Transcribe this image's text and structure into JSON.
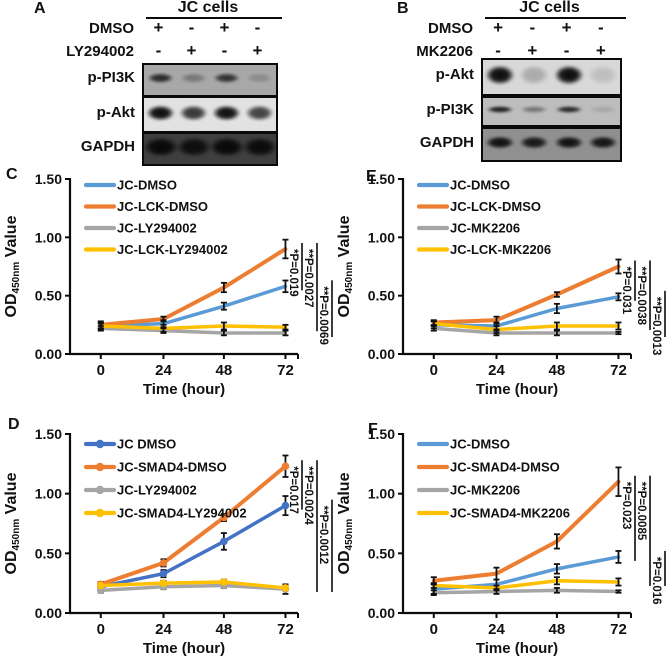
{
  "blot_panels": [
    {
      "id": "A",
      "letter": "A",
      "header": "JC cells",
      "conditions": [
        {
          "name": "DMSO",
          "signs": [
            "+",
            "-",
            "+",
            "-"
          ]
        },
        {
          "name": "LY294002",
          "signs": [
            "-",
            "+",
            "-",
            "+"
          ]
        }
      ],
      "blots": [
        {
          "label": "p-PI3K",
          "bg": "#a8a8a8",
          "band_h": 10,
          "band_w": 27,
          "bands": [
            0.8,
            0.3,
            0.75,
            0.18
          ]
        },
        {
          "label": "p-Akt",
          "bg": "#e2e2e2",
          "band_h": 16,
          "band_w": 29,
          "bands": [
            1.0,
            0.8,
            0.98,
            0.75
          ]
        },
        {
          "label": "GAPDH",
          "bg": "#3f3f3f",
          "band_h": 20,
          "band_w": 36,
          "bands": [
            1.0,
            0.92,
            1.0,
            0.96
          ]
        }
      ]
    },
    {
      "id": "B",
      "letter": "B",
      "header": "JC cells",
      "conditions": [
        {
          "name": "DMSO",
          "signs": [
            "+",
            "-",
            "+",
            "-"
          ]
        },
        {
          "name": "MK2206",
          "signs": [
            "-",
            "+",
            "-",
            "+"
          ]
        }
      ],
      "blots": [
        {
          "label": "p-Akt",
          "bg": "#d8d8d8",
          "band_h": 20,
          "band_w": 30,
          "bands": [
            1.0,
            0.22,
            1.0,
            0.12
          ]
        },
        {
          "label": "p-PI3K",
          "bg": "#bdbdbd",
          "band_h": 7,
          "band_w": 28,
          "bands": [
            0.9,
            0.4,
            0.85,
            0.12
          ]
        },
        {
          "label": "GAPDH",
          "bg": "#909090",
          "band_h": 13,
          "band_w": 30,
          "bands": [
            0.95,
            0.9,
            0.95,
            0.92
          ]
        }
      ]
    }
  ],
  "chart_data": [
    {
      "id": "C",
      "letter": "C",
      "type": "line",
      "x": [
        0,
        24,
        48,
        72
      ],
      "xlabel": "Time  (hour)",
      "ylabel": "OD450nm Value",
      "ylabel_parts": {
        "pre": "OD",
        "sub": "450nm",
        "post": "Value"
      },
      "ylim": [
        0,
        1.5
      ],
      "yticks": [
        "0.00",
        "0.50",
        "1.00",
        "1.50"
      ],
      "grid": false,
      "legend_position": "top-left",
      "markers": false,
      "series": [
        {
          "name": "JC-DMSO",
          "color": "#5B9BD5",
          "values": [
            0.24,
            0.26,
            0.41,
            0.58
          ],
          "err": [
            0.03,
            0.03,
            0.03,
            0.05
          ]
        },
        {
          "name": "JC-LCK-DMSO",
          "color": "#ED7D31",
          "values": [
            0.25,
            0.3,
            0.57,
            0.9
          ],
          "err": [
            0.03,
            0.02,
            0.04,
            0.08
          ]
        },
        {
          "name": "JC-LY294002",
          "color": "#A5A5A5",
          "values": [
            0.22,
            0.2,
            0.18,
            0.18
          ],
          "err": [
            0.02,
            0.02,
            0.02,
            0.02
          ]
        },
        {
          "name": "JC-LCK-LY294002",
          "color": "#FFC000",
          "values": [
            0.24,
            0.22,
            0.24,
            0.23
          ],
          "err": [
            0.02,
            0.03,
            0.03,
            0.02
          ]
        }
      ],
      "pvalues": [
        {
          "label": "*P=0.019",
          "from": 1,
          "to": 0
        },
        {
          "label": "**P=0.0027",
          "from": 1,
          "to": 3
        },
        {
          "label": "**P=0.0069",
          "from": 0,
          "to": 2
        }
      ]
    },
    {
      "id": "E",
      "letter": "E",
      "type": "line",
      "x": [
        0,
        24,
        48,
        72
      ],
      "xlabel": "Time  (hour)",
      "ylabel": "OD450nm Value",
      "ylabel_parts": {
        "pre": "OD",
        "sub": "450nm",
        "post": "Value"
      },
      "ylim": [
        0,
        1.5
      ],
      "yticks": [
        "0.00",
        "0.50",
        "1.00",
        "1.50"
      ],
      "grid": false,
      "legend_position": "top-left",
      "markers": false,
      "series": [
        {
          "name": "JC-DMSO",
          "color": "#5B9BD5",
          "values": [
            0.25,
            0.24,
            0.39,
            0.49
          ],
          "err": [
            0.03,
            0.03,
            0.04,
            0.03
          ]
        },
        {
          "name": "JC-LCK-DMSO",
          "color": "#ED7D31",
          "values": [
            0.27,
            0.29,
            0.51,
            0.75
          ],
          "err": [
            0.02,
            0.03,
            0.02,
            0.06
          ]
        },
        {
          "name": "JC-MK2206",
          "color": "#A5A5A5",
          "values": [
            0.22,
            0.18,
            0.18,
            0.18
          ],
          "err": [
            0.02,
            0.02,
            0.02,
            0.01
          ]
        },
        {
          "name": "JC-LCK-MK2206",
          "color": "#FFC000",
          "values": [
            0.26,
            0.21,
            0.24,
            0.24
          ],
          "err": [
            0.02,
            0.03,
            0.03,
            0.03
          ]
        }
      ],
      "pvalues": [
        {
          "label": "*P=0.031",
          "from": 1,
          "to": 0
        },
        {
          "label": "**P=0.0038",
          "from": 1,
          "to": 3
        },
        {
          "label": "**P=0.0013",
          "from": 0,
          "to": 2
        }
      ]
    },
    {
      "id": "D",
      "letter": "D",
      "type": "line",
      "x": [
        0,
        24,
        48,
        72
      ],
      "xlabel": "Time  (hour)",
      "ylabel": "OD450nm Value",
      "ylabel_parts": {
        "pre": "OD",
        "sub": "450nm",
        "post": "Value"
      },
      "ylim": [
        0,
        1.5
      ],
      "yticks": [
        "0.00",
        "0.50",
        "1.00",
        "1.50"
      ],
      "grid": false,
      "legend_position": "top-left",
      "markers": true,
      "series": [
        {
          "name": "JC DMSO",
          "color": "#4472C4",
          "values": [
            0.22,
            0.33,
            0.6,
            0.9
          ],
          "err": [
            0.02,
            0.03,
            0.07,
            0.08
          ]
        },
        {
          "name": "JC-SMAD4-DMSO",
          "color": "#ED7D31",
          "values": [
            0.24,
            0.42,
            0.8,
            1.23
          ],
          "err": [
            0.02,
            0.03,
            0.03,
            0.09
          ]
        },
        {
          "name": "JC-LY294002",
          "color": "#A5A5A5",
          "values": [
            0.19,
            0.22,
            0.23,
            0.2
          ],
          "err": [
            0.02,
            0.02,
            0.02,
            0.04
          ]
        },
        {
          "name": "JC-SMAD4-LY294002",
          "color": "#FFC000",
          "values": [
            0.23,
            0.25,
            0.26,
            0.21
          ],
          "err": [
            0.02,
            0.02,
            0.02,
            0.02
          ]
        }
      ],
      "pvalues": [
        {
          "label": "*P=0.017",
          "from": 1,
          "to": 0
        },
        {
          "label": "**P=0.0024",
          "from": 1,
          "to": 3
        },
        {
          "label": "**P=0.0012",
          "from": 0,
          "to": 3
        }
      ]
    },
    {
      "id": "F",
      "letter": "F",
      "type": "line",
      "x": [
        0,
        24,
        48,
        72
      ],
      "xlabel": "Time  (hour)",
      "ylabel": "OD450nm Value",
      "ylabel_parts": {
        "pre": "OD",
        "sub": "450nm",
        "post": "Value"
      },
      "ylim": [
        0,
        1.5
      ],
      "yticks": [
        "0.00",
        "0.50",
        "1.00",
        "1.50"
      ],
      "grid": false,
      "legend_position": "top-left",
      "markers": false,
      "series": [
        {
          "name": "JC-DMSO",
          "color": "#5B9BD5",
          "values": [
            0.2,
            0.24,
            0.37,
            0.47
          ],
          "err": [
            0.04,
            0.04,
            0.04,
            0.05
          ]
        },
        {
          "name": "JC-SMAD4-DMSO",
          "color": "#ED7D31",
          "values": [
            0.27,
            0.33,
            0.6,
            1.1
          ],
          "err": [
            0.03,
            0.05,
            0.06,
            0.12
          ]
        },
        {
          "name": "JC-MK2206",
          "color": "#A5A5A5",
          "values": [
            0.17,
            0.18,
            0.19,
            0.18
          ],
          "err": [
            0.02,
            0.02,
            0.02,
            0.01
          ]
        },
        {
          "name": "JC-SMAD4-MK2206",
          "color": "#FFC000",
          "values": [
            0.23,
            0.21,
            0.27,
            0.26
          ],
          "err": [
            0.02,
            0.02,
            0.03,
            0.03
          ]
        }
      ],
      "pvalues": [
        {
          "label": "*P=0.023",
          "from": 1,
          "to": 0
        },
        {
          "label": "**P=0.0085",
          "from": 1,
          "to": 3
        },
        {
          "label": "*P=0.016",
          "from": 0,
          "to": 3
        }
      ]
    }
  ],
  "colors": {
    "blue": "#5B9BD5",
    "blue_dark": "#4472C4",
    "orange": "#ED7D31",
    "gray": "#A5A5A5",
    "yellow": "#FFC000",
    "ink": "#111111"
  }
}
